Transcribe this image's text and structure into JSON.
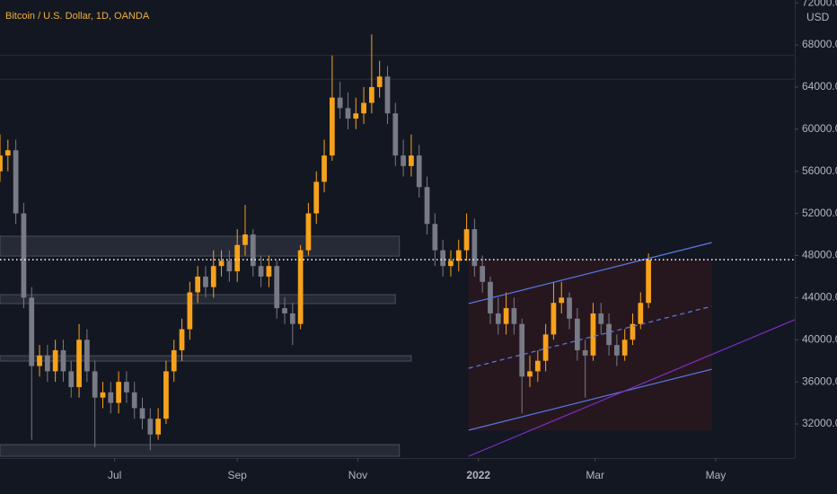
{
  "chart_data": {
    "type": "candlestick",
    "title": "Bitcoin / U.S. Dollar, 1D, OANDA",
    "y_label": "USD",
    "up_color": "#f7a21b",
    "down_color": "#787b86",
    "xlim": [
      0,
      402
    ],
    "xticks": [
      {
        "value": 58,
        "label": "Jul"
      },
      {
        "value": 120,
        "label": "Sep"
      },
      {
        "value": 181,
        "label": "Nov"
      },
      {
        "value": 242,
        "label": "2022"
      },
      {
        "value": 301,
        "label": "Mar"
      },
      {
        "value": 362,
        "label": "May"
      }
    ],
    "ylim": [
      28760,
      72270
    ],
    "yticks": [
      {
        "value": 32000,
        "label": "32000.00"
      },
      {
        "value": 36000,
        "label": "36000.00"
      },
      {
        "value": 40000,
        "label": "40000.00"
      },
      {
        "value": 44000,
        "label": "44000.00"
      },
      {
        "value": 48000,
        "label": "48000.00"
      },
      {
        "value": 52000,
        "label": "52000.00"
      },
      {
        "value": 56000,
        "label": "56000.00"
      },
      {
        "value": 60000,
        "label": "60000.00"
      },
      {
        "value": 64000,
        "label": "64000.00"
      },
      {
        "value": 68000,
        "label": "68000.00"
      },
      {
        "value": 72000,
        "label": "72000.00"
      }
    ],
    "x": [
      0,
      4,
      8,
      12,
      16,
      20,
      24,
      28,
      32,
      36,
      40,
      44,
      48,
      52,
      56,
      60,
      64,
      68,
      72,
      76,
      80,
      84,
      88,
      92,
      96,
      100,
      104,
      108,
      112,
      116,
      120,
      124,
      128,
      132,
      136,
      140,
      144,
      148,
      152,
      156,
      160,
      164,
      168,
      172,
      176,
      180,
      184,
      188,
      192,
      196,
      200,
      204,
      208,
      212,
      216,
      220,
      224,
      228,
      232,
      236,
      240,
      244,
      248,
      252,
      256,
      260,
      264,
      268,
      272,
      276,
      280,
      284,
      288,
      292,
      296,
      300,
      304,
      308,
      312,
      316,
      320,
      324,
      328
    ],
    "open": [
      56000,
      57500,
      58000,
      52000,
      44000,
      37500,
      38500,
      37000,
      39000,
      37000,
      35500,
      40000,
      37000,
      34500,
      35000,
      34000,
      36000,
      35000,
      33500,
      32500,
      31000,
      32500,
      37000,
      39000,
      41000,
      44500,
      46000,
      45000,
      47000,
      47500,
      46500,
      49000,
      50000,
      47000,
      46000,
      47000,
      43000,
      42500,
      41500,
      48500,
      52000,
      55000,
      57500,
      63000,
      62000,
      61000,
      61500,
      62500,
      64000,
      65000,
      61500,
      57500,
      56500,
      57500,
      54500,
      51000,
      48500,
      47000,
      47500,
      48500,
      50500,
      47000,
      45500,
      42500,
      41500,
      43000,
      41500,
      36500,
      37000,
      38000,
      40500,
      43500,
      44000,
      42000,
      39000,
      38500,
      42500,
      41500,
      39500,
      38500,
      40000,
      41500,
      43500
    ],
    "high": [
      59500,
      59000,
      59000,
      53000,
      45000,
      39500,
      39500,
      40000,
      40000,
      38000,
      41500,
      41000,
      38000,
      36000,
      36000,
      37000,
      37000,
      36000,
      34500,
      33500,
      33500,
      38000,
      40000,
      42000,
      45500,
      47000,
      47000,
      48500,
      48500,
      48500,
      50500,
      52800,
      50500,
      48000,
      48000,
      47500,
      44000,
      43500,
      49000,
      53000,
      56000,
      59000,
      67000,
      64500,
      63500,
      63000,
      64000,
      69000,
      66500,
      66000,
      62500,
      59000,
      59500,
      58500,
      55500,
      52000,
      49500,
      48500,
      49500,
      52000,
      51500,
      48000,
      46000,
      44000,
      44500,
      44000,
      42000,
      38500,
      39000,
      41500,
      45500,
      45500,
      44500,
      43000,
      40000,
      43500,
      43500,
      42500,
      40500,
      41000,
      42500,
      44500,
      48200
    ],
    "low": [
      55000,
      56000,
      51000,
      43000,
      30500,
      36500,
      36000,
      36000,
      36000,
      34500,
      34500,
      36000,
      29800,
      33500,
      33000,
      33000,
      34000,
      32500,
      31500,
      29500,
      30500,
      32000,
      36000,
      38000,
      40000,
      43500,
      44000,
      44000,
      46000,
      45500,
      45500,
      48000,
      46000,
      45000,
      45000,
      42000,
      41500,
      39500,
      41000,
      48000,
      51000,
      54000,
      57000,
      61000,
      60000,
      60000,
      60500,
      61500,
      63000,
      60500,
      56500,
      55500,
      55500,
      53500,
      50000,
      47000,
      46000,
      46000,
      46500,
      47500,
      46000,
      44500,
      41500,
      40500,
      40500,
      40500,
      33000,
      35500,
      36000,
      37000,
      40000,
      42500,
      41000,
      38000,
      34500,
      38000,
      40500,
      38500,
      37500,
      38000,
      39500,
      41000,
      43000
    ],
    "close": [
      57500,
      58000,
      52000,
      44000,
      37500,
      38500,
      37000,
      39000,
      37000,
      35500,
      40000,
      37000,
      34500,
      35000,
      34000,
      36000,
      35000,
      33500,
      32500,
      31000,
      32500,
      37000,
      39000,
      41000,
      44500,
      46000,
      45000,
      47000,
      47500,
      46500,
      49000,
      50000,
      47000,
      46000,
      47000,
      43000,
      42500,
      41500,
      48500,
      52000,
      55000,
      57500,
      63000,
      62000,
      61000,
      61500,
      62500,
      64000,
      65000,
      61500,
      57500,
      56500,
      57500,
      54500,
      51000,
      48500,
      47000,
      47500,
      48500,
      50500,
      47000,
      45500,
      42500,
      41500,
      43000,
      41500,
      36500,
      37000,
      38000,
      40500,
      43500,
      44000,
      42000,
      39000,
      38500,
      42500,
      41500,
      39500,
      38500,
      40000,
      41500,
      43500,
      47600
    ],
    "levels": [
      67000,
      64750
    ],
    "zones": [
      {
        "top": 49830,
        "bottom": 47950,
        "end": 202
      },
      {
        "top": 44280,
        "bottom": 43430,
        "end": 200
      },
      {
        "top": 38480,
        "bottom": 37970,
        "end": 208
      },
      {
        "top": 30040,
        "bottom": 28930,
        "end": 202
      }
    ],
    "channel": {
      "start": 237,
      "end": 360,
      "upper": [
        43430,
        49230
      ],
      "middle": [
        37290,
        43180
      ],
      "lower": [
        31400,
        37200
      ]
    },
    "trend_line": {
      "start": 237,
      "end": 402,
      "prices": [
        28930,
        41900
      ]
    }
  }
}
